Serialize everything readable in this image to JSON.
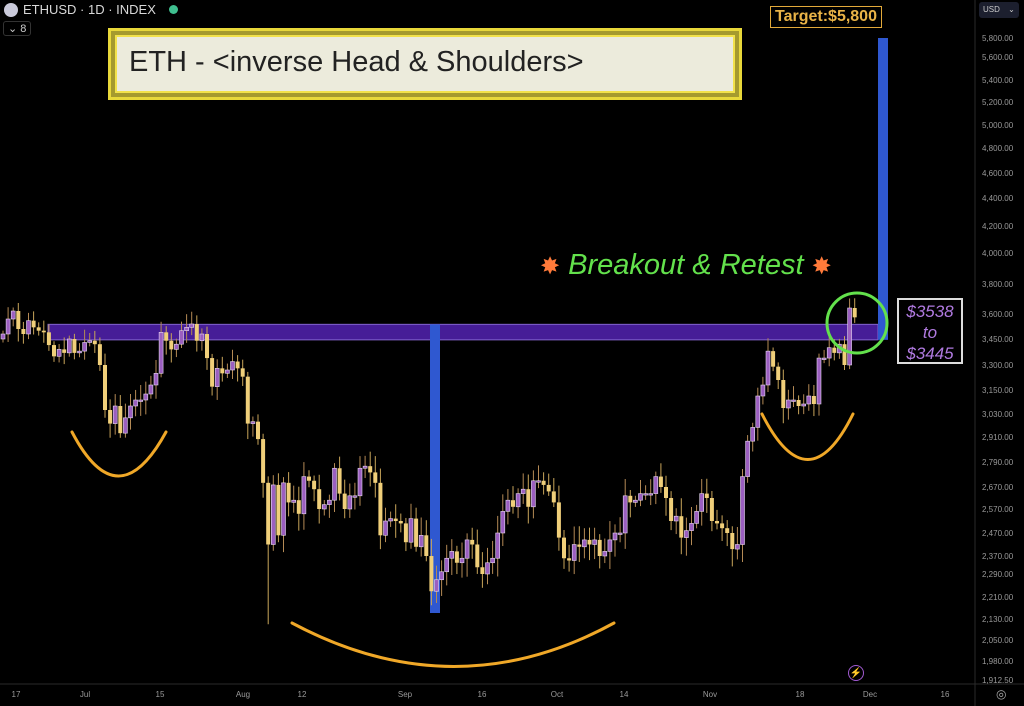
{
  "header": {
    "symbol": "ETHUSD · 1D · INDEX",
    "collapse_label": "8",
    "currency": "USD"
  },
  "annotations": {
    "title": "ETH - <inverse Head & Shoulders>",
    "target": "Target:$5,800",
    "breakout": "Breakout & Retest",
    "zone_top": "$3538",
    "zone_to": "to",
    "zone_bottom": "$3445"
  },
  "colors": {
    "up": "#9b5fc0",
    "down": "#f0cf7a",
    "zone": "#4a1fa0",
    "measure": "#2f58d0",
    "arc": "#f0a828",
    "circle": "#63e14c"
  },
  "chart_data": {
    "type": "candlestick",
    "title": "ETH - <inverse Head & Shoulders>",
    "y_ticks": [
      5800,
      5600,
      5400,
      5200,
      5000,
      4800,
      4600,
      4400,
      4200,
      4000,
      3800,
      3600,
      3450,
      3300,
      3150,
      3030,
      2910,
      2790,
      2670,
      2570,
      2470,
      2370,
      2290,
      2210,
      2130,
      2050,
      1980,
      1912.5
    ],
    "y_tick_labels": [
      "5,800.00",
      "5,600.00",
      "5,400.00",
      "5,200.00",
      "5,000.00",
      "4,800.00",
      "4,600.00",
      "4,400.00",
      "4,200.00",
      "4,000.00",
      "3,800.00",
      "3,600.00",
      "3,450.00",
      "3,300.00",
      "3,150.00",
      "3,030.00",
      "2,910.00",
      "2,790.00",
      "2,670.00",
      "2,570.00",
      "2,470.00",
      "2,370.00",
      "2,290.00",
      "2,210.00",
      "2,130.00",
      "2,050.00",
      "1,980.00",
      "1,912.50"
    ],
    "x_tick_labels": [
      "17",
      "Jul",
      "15",
      "Aug",
      "12",
      "Sep",
      "16",
      "Oct",
      "14",
      "Nov",
      "18",
      "Dec",
      "16"
    ],
    "months": [
      {
        "month": "Jun",
        "start_day": 14,
        "closes": [
          3480,
          3570,
          3620,
          3510,
          3480,
          3560,
          3520,
          3500,
          3490,
          3415,
          3350,
          3390,
          3370,
          3450,
          3370,
          3380,
          3430
        ]
      },
      {
        "month": "Jul",
        "start_day": 1,
        "closes": [
          3440,
          3420,
          3300,
          3050,
          2980,
          3070,
          2930,
          3010,
          3070,
          3100,
          3100,
          3130,
          3180,
          3250,
          3490,
          3440,
          3390,
          3420,
          3500,
          3520,
          3540,
          3440,
          3480,
          3340,
          3170,
          3280,
          3250,
          3270,
          3320,
          3280,
          3230
        ]
      },
      {
        "month": "Aug",
        "start_day": 1,
        "closes": [
          2980,
          2990,
          2900,
          2690,
          2420,
          2680,
          2460,
          2690,
          2600,
          2610,
          2550,
          2720,
          2700,
          2660,
          2570,
          2590,
          2610,
          2760,
          2640,
          2570,
          2630,
          2630,
          2760,
          2770,
          2740,
          2690,
          2460,
          2520,
          2530,
          2520,
          2510
        ]
      },
      {
        "month": "Sep",
        "start_day": 1,
        "closes": [
          2430,
          2530,
          2410,
          2460,
          2370,
          2230,
          2270,
          2300,
          2360,
          2390,
          2340,
          2360,
          2440,
          2420,
          2320,
          2290,
          2340,
          2360,
          2470,
          2560,
          2610,
          2580,
          2640,
          2660,
          2580,
          2700,
          2700,
          2680,
          2650,
          2600
        ]
      },
      {
        "month": "Oct",
        "start_day": 1,
        "closes": [
          2450,
          2360,
          2350,
          2420,
          2410,
          2440,
          2420,
          2440,
          2370,
          2390,
          2440,
          2470,
          2470,
          2630,
          2600,
          2610,
          2640,
          2640,
          2640,
          2720,
          2670,
          2620,
          2520,
          2540,
          2450,
          2480,
          2510,
          2560,
          2640,
          2620,
          2520
        ]
      },
      {
        "month": "Nov",
        "start_day": 1,
        "closes": [
          2510,
          2490,
          2470,
          2400,
          2420,
          2720,
          2890,
          2960,
          3120,
          3180,
          3380,
          3290,
          3210,
          3060,
          3100,
          3100,
          3070,
          3080,
          3120,
          3080,
          3340,
          3340,
          3400,
          3370,
          3420,
          3300,
          3640,
          3580
        ]
      }
    ],
    "notable_lows": {
      "Aug 5": 2110,
      "Sep 6": 2180
    },
    "zone": {
      "top": 3538,
      "bottom": 3445
    },
    "target": 5800,
    "ylim": [
      1912.5,
      5800
    ]
  }
}
